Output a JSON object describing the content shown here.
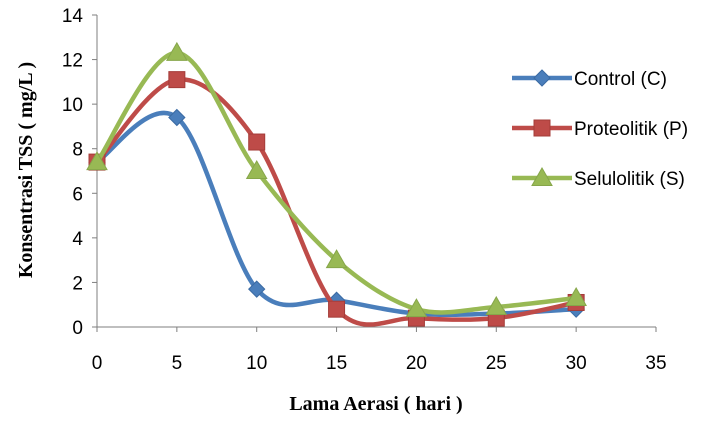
{
  "chart_data": {
    "type": "line",
    "title": "",
    "xlabel": "Lama Aerasi ( hari )",
    "ylabel": "Konsentrasi  TSS ( mg/L )",
    "xlim": [
      0,
      35
    ],
    "ylim": [
      0,
      14
    ],
    "x_ticks": [
      "0",
      "5",
      "10",
      "15",
      "20",
      "25",
      "30",
      "35"
    ],
    "y_ticks": [
      "0",
      "2",
      "4",
      "6",
      "8",
      "10",
      "12",
      "14"
    ],
    "grid": false,
    "legend_position": "right",
    "series": [
      {
        "name": "Control (C)",
        "marker": "diamond",
        "color": "#4a7ebb",
        "x": [
          0,
          5,
          10,
          15,
          20,
          25,
          30
        ],
        "y": [
          7.4,
          9.4,
          1.7,
          1.2,
          0.6,
          0.6,
          0.8
        ]
      },
      {
        "name": "Proteolitik (P)",
        "marker": "square",
        "color": "#be4b48",
        "x": [
          0,
          5,
          10,
          15,
          20,
          25,
          30
        ],
        "y": [
          7.4,
          11.1,
          8.3,
          0.8,
          0.4,
          0.4,
          1.1
        ]
      },
      {
        "name": "Selulolitik (S)",
        "marker": "triangle",
        "color": "#98b954",
        "x": [
          0,
          5,
          10,
          15,
          20,
          25,
          30
        ],
        "y": [
          7.4,
          12.3,
          7.0,
          3.0,
          0.8,
          0.9,
          1.3
        ]
      }
    ]
  }
}
